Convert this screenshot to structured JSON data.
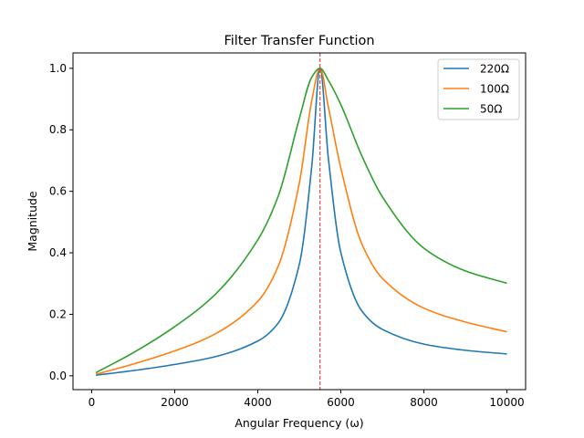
{
  "chart_data": {
    "type": "line",
    "title": "Filter Transfer Function",
    "xlabel": "Angular Frequency (ω)",
    "ylabel": "Magnitude",
    "xlim": [
      -450,
      10450
    ],
    "ylim": [
      -0.045,
      1.05
    ],
    "xticks": [
      0,
      2000,
      4000,
      6000,
      8000,
      10000
    ],
    "xtick_labels": [
      "0",
      "2000",
      "4000",
      "6000",
      "8000",
      "10000"
    ],
    "yticks": [
      0.0,
      0.2,
      0.4,
      0.6,
      0.8,
      1.0
    ],
    "ytick_labels": [
      "0.0",
      "0.2",
      "0.4",
      "0.6",
      "0.8",
      "1.0"
    ],
    "grid": false,
    "legend_position": "top-right",
    "resonance_line": {
      "x": 5500,
      "color": "#d62728",
      "style": "dashed"
    },
    "series": [
      {
        "name": "220Ω",
        "color": "#1f77b4",
        "x": [
          100,
          1000,
          2000,
          3000,
          4000,
          4500,
          5000,
          5300,
          5500,
          5700,
          6000,
          6500,
          7000,
          8000,
          9000,
          10000
        ],
        "y": [
          0.002,
          0.017,
          0.037,
          0.063,
          0.113,
          0.173,
          0.362,
          0.681,
          1.0,
          0.707,
          0.401,
          0.212,
          0.151,
          0.103,
          0.083,
          0.071
        ]
      },
      {
        "name": "100Ω",
        "color": "#ff7f0e",
        "x": [
          100,
          1000,
          2000,
          3000,
          4000,
          4500,
          5000,
          5300,
          5500,
          5700,
          6000,
          6500,
          7000,
          8000,
          9000,
          10000
        ],
        "y": [
          0.005,
          0.038,
          0.081,
          0.138,
          0.242,
          0.359,
          0.626,
          0.895,
          1.0,
          0.874,
          0.676,
          0.431,
          0.317,
          0.22,
          0.175,
          0.143
        ]
      },
      {
        "name": "50Ω",
        "color": "#2ca02c",
        "x": [
          100,
          1000,
          2000,
          3000,
          4000,
          4500,
          5000,
          5300,
          5500,
          5700,
          6000,
          6500,
          7000,
          8000,
          9000,
          10000
        ],
        "y": [
          0.01,
          0.075,
          0.16,
          0.268,
          0.442,
          0.587,
          0.836,
          0.971,
          1.0,
          0.961,
          0.882,
          0.717,
          0.582,
          0.415,
          0.341,
          0.301
        ]
      }
    ]
  }
}
